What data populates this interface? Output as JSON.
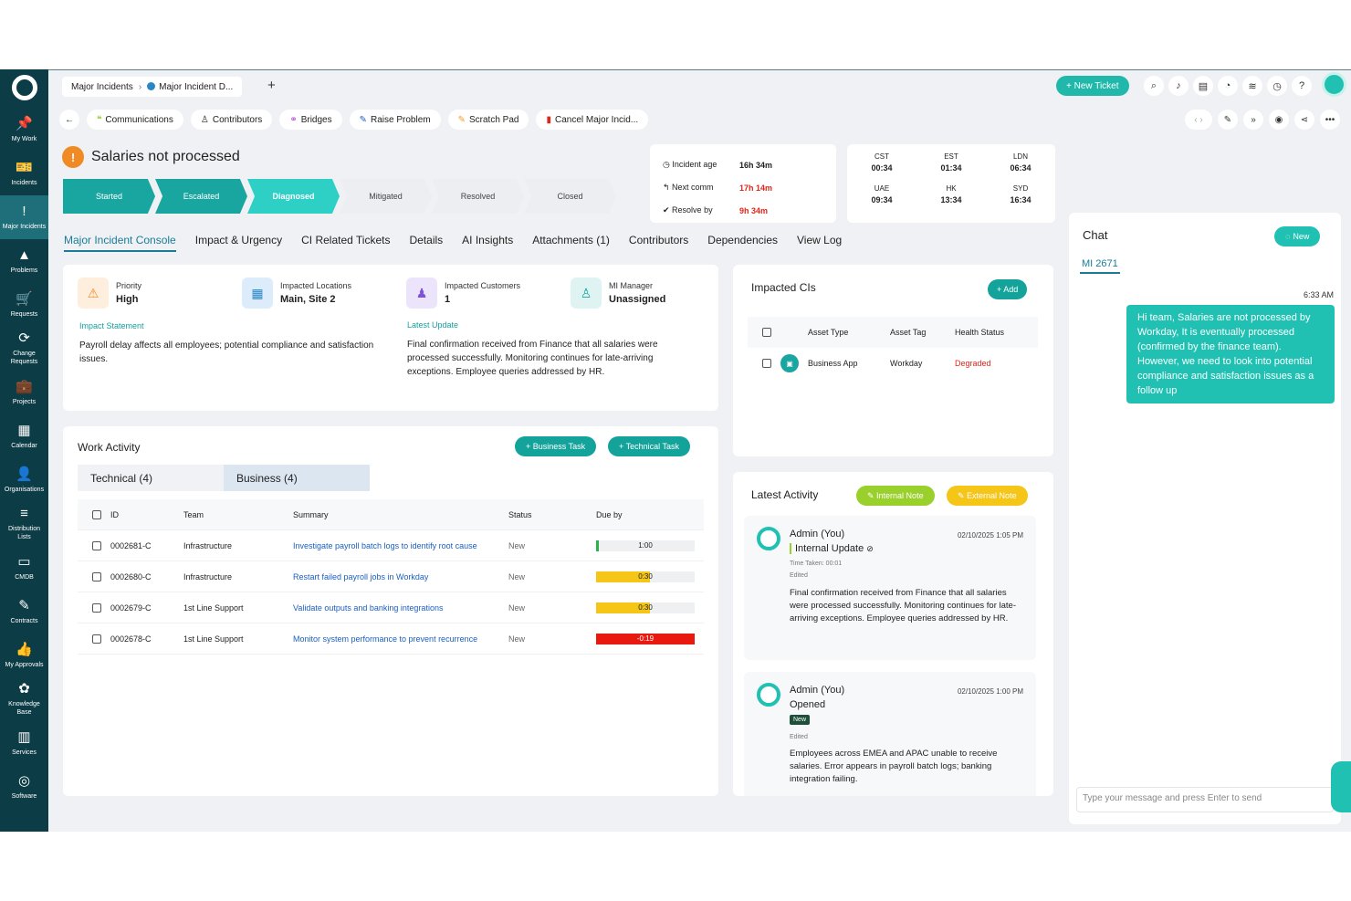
{
  "sidebar": {
    "items": [
      {
        "label": "My Work",
        "icon": "📌"
      },
      {
        "label": "Incidents",
        "icon": "🎫"
      },
      {
        "label": "Major Incidents",
        "icon": "!"
      },
      {
        "label": "Problems",
        "icon": "▲"
      },
      {
        "label": "Requests",
        "icon": "🛒"
      },
      {
        "label": "Change Requests",
        "icon": "⟳"
      },
      {
        "label": "Projects",
        "icon": "💼"
      },
      {
        "label": "Calendar",
        "icon": "▦"
      },
      {
        "label": "Organisations",
        "icon": "👤"
      },
      {
        "label": "Distribution Lists",
        "icon": "≡"
      },
      {
        "label": "CMDB",
        "icon": "▭"
      },
      {
        "label": "Contracts",
        "icon": "✎"
      },
      {
        "label": "My Approvals",
        "icon": "👍"
      },
      {
        "label": "Knowledge Base",
        "icon": "✿"
      },
      {
        "label": "Services",
        "icon": "▥"
      },
      {
        "label": "Software",
        "icon": "◎"
      }
    ]
  },
  "topbar": {
    "crumb1": "Major Incidents",
    "crumb_sep": "›",
    "crumb2": "Major Incident D...",
    "new_tab": "+",
    "new_ticket": "+ New Ticket"
  },
  "actions": {
    "back": "←",
    "items": [
      "Communications",
      "Contributors",
      "Bridges",
      "Raise Problem",
      "Scratch Pad",
      "Cancel Major Incid..."
    ]
  },
  "incident": {
    "title": "Salaries not processed",
    "stages": [
      "Started",
      "Escalated",
      "Diagnosed",
      "Mitigated",
      "Resolved",
      "Closed"
    ],
    "age_label": "Incident age",
    "age": "16h 34m",
    "next_label": "Next comm",
    "next": "17h 14m",
    "resolve_label": "Resolve by",
    "resolve": "9h 34m"
  },
  "timezones": [
    {
      "zone": "CST",
      "time": "00:34"
    },
    {
      "zone": "EST",
      "time": "01:34"
    },
    {
      "zone": "LDN",
      "time": "06:34"
    },
    {
      "zone": "UAE",
      "time": "09:34"
    },
    {
      "zone": "HK",
      "time": "13:34"
    },
    {
      "zone": "SYD",
      "time": "16:34"
    }
  ],
  "tabs": [
    "Major Incident Console",
    "Impact & Urgency",
    "CI Related Tickets",
    "Details",
    "AI Insights",
    "Attachments (1)",
    "Contributors",
    "Dependencies",
    "View Log"
  ],
  "summary": {
    "priority_label": "Priority",
    "priority": "High",
    "locations_label": "Impacted Locations",
    "locations": "Main, Site 2",
    "customers_label": "Impacted Customers",
    "customers": "1",
    "manager_label": "MI Manager",
    "manager": "Unassigned",
    "impact_label": "Impact Statement",
    "impact_text": "Payroll delay affects all employees; potential compliance and satisfaction issues.",
    "update_label": "Latest Update",
    "update_text": "Final confirmation received from Finance that all salaries were processed successfully. Monitoring continues for late-arriving exceptions. Employee queries addressed by HR."
  },
  "work": {
    "title": "Work Activity",
    "business_task": "+ Business Task",
    "technical_task": "+ Technical Task",
    "tab_technical": "Technical (4)",
    "tab_business": "Business (4)",
    "headers": [
      "ID",
      "Team",
      "Summary",
      "Status",
      "Due by"
    ],
    "rows": [
      {
        "id": "0002681-C",
        "team": "Infrastructure",
        "summary": "Investigate payroll batch logs to identify root cause",
        "status": "New",
        "due": "1:00",
        "fill": 0.03,
        "color": "#2bb24c"
      },
      {
        "id": "0002680-C",
        "team": "Infrastructure",
        "summary": "Restart failed payroll jobs in Workday",
        "status": "New",
        "due": "0:30",
        "fill": 0.55,
        "color": "#f5c518"
      },
      {
        "id": "0002679-C",
        "team": "1st Line Support",
        "summary": "Validate outputs and banking integrations",
        "status": "New",
        "due": "0:30",
        "fill": 0.55,
        "color": "#f5c518"
      },
      {
        "id": "0002678-C",
        "team": "1st Line Support",
        "summary": "Monitor system performance to prevent recurrence",
        "status": "New",
        "due": "-0:19",
        "fill": 1.0,
        "color": "#e8190f"
      }
    ]
  },
  "cis": {
    "title": "Impacted CIs",
    "add": "+ Add",
    "headers": [
      "Asset Type",
      "Asset Tag",
      "Health Status"
    ],
    "row": {
      "type": "Business App",
      "tag": "Workday",
      "health": "Degraded"
    }
  },
  "activity": {
    "title": "Latest Activity",
    "internal_note": "✎ Internal Note",
    "external_note": "✎ External Note",
    "entries": [
      {
        "name": "Admin (You)",
        "date": "02/10/2025 1:05 PM",
        "kind": "Internal Update",
        "time_taken": "Time Taken: 00:01",
        "edited": "Edited",
        "text": "Final confirmation received from Finance that all salaries were processed successfully. Monitoring continues for late-arriving exceptions. Employee queries addressed by HR."
      },
      {
        "name": "Admin (You)",
        "date": "02/10/2025 1:00 PM",
        "kind": "Opened",
        "badge": "New",
        "edited": "Edited",
        "text": "Employees across EMEA and APAC unable to receive salaries. Error appears in payroll batch logs; banking integration failing."
      }
    ]
  },
  "chat": {
    "title": "Chat",
    "new": "New",
    "thread": "MI 2671",
    "time": "6:33 AM",
    "message": "Hi team, Salaries are not processed by Workday, It is eventually processed (confirmed by the finance team). However, we need to look into potential compliance and satisfaction issues as a follow up",
    "placeholder": "Type your message and press Enter to send"
  }
}
